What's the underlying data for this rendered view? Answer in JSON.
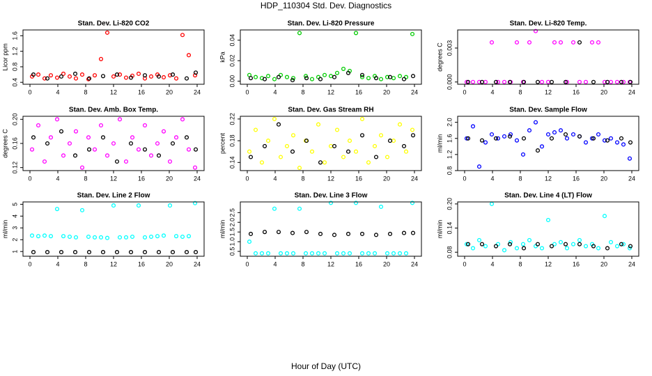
{
  "title": "HDP_110304  Std. Dev. Diagnostics",
  "x_label": "Hour of Day (UTC)",
  "chart_data": [
    {
      "type": "scatter",
      "title": "Stan. Dev. Li-820 CO2",
      "y_label": "Licor ppm",
      "xlim": [
        -1,
        25
      ],
      "xticks": [
        0,
        4,
        8,
        12,
        16,
        20,
        24
      ],
      "ylim": [
        0.35,
        1.75
      ],
      "yticks": [
        0.4,
        0.8,
        1.2,
        1.6
      ],
      "series": [
        {
          "color": "#ff0000",
          "x": [
            0.3,
            1.2,
            2.1,
            3.0,
            3.9,
            4.8,
            5.7,
            6.6,
            7.5,
            8.4,
            9.3,
            10.2,
            11.1,
            12.0,
            12.9,
            13.8,
            14.7,
            15.6,
            16.5,
            17.4,
            18.3,
            19.2,
            20.1,
            21.0,
            21.9,
            22.8,
            23.7
          ],
          "values": [
            0.55,
            0.6,
            0.5,
            0.58,
            0.52,
            0.62,
            0.55,
            0.5,
            0.6,
            0.48,
            0.58,
            1.0,
            1.68,
            0.55,
            0.6,
            0.52,
            0.57,
            0.62,
            0.5,
            0.55,
            0.6,
            0.53,
            0.58,
            0.5,
            1.62,
            1.1,
            0.58
          ]
        },
        {
          "color": "#000000",
          "x": [
            0.5,
            2.5,
            4.5,
            6.5,
            8.5,
            10.5,
            12.5,
            14.5,
            16.5,
            18.5,
            20.5,
            22.5,
            23.8
          ],
          "values": [
            0.6,
            0.5,
            0.55,
            0.62,
            0.5,
            0.56,
            0.6,
            0.52,
            0.58,
            0.55,
            0.6,
            0.5,
            0.65
          ]
        }
      ]
    },
    {
      "type": "scatter",
      "title": "Stan. Dev. Li-820 Pressure",
      "y_label": "kPa",
      "xlim": [
        -1,
        25
      ],
      "xticks": [
        0,
        4,
        8,
        12,
        16,
        20,
        24
      ],
      "ylim": [
        -0.003,
        0.05
      ],
      "yticks": [
        {
          "value": 0,
          "label": "0.00"
        },
        0.02,
        0.04
      ],
      "series": [
        {
          "color": "#00cc00",
          "x": [
            0.3,
            1.2,
            2.1,
            3.0,
            3.9,
            4.8,
            5.7,
            6.6,
            7.5,
            8.4,
            9.3,
            10.2,
            11.1,
            12.0,
            12.9,
            13.8,
            14.7,
            15.6,
            16.5,
            17.4,
            18.3,
            19.2,
            20.1,
            21.0,
            21.9,
            22.8,
            23.7
          ],
          "values": [
            0.006,
            0.004,
            0.003,
            0.005,
            0.002,
            0.006,
            0.004,
            0.003,
            0.047,
            0.005,
            0.002,
            0.004,
            0.006,
            0.005,
            0.008,
            0.012,
            0.01,
            0.047,
            0.004,
            0.003,
            0.005,
            0.002,
            0.004,
            0.003,
            0.005,
            0.004,
            0.046
          ]
        },
        {
          "color": "#000000",
          "x": [
            0.5,
            2.5,
            4.5,
            6.5,
            8.5,
            10.5,
            12.5,
            14.5,
            16.5,
            18.5,
            20.5,
            22.5,
            23.8
          ],
          "values": [
            0.003,
            0.002,
            0.004,
            0.001,
            0.003,
            0.002,
            0.004,
            0.008,
            0.006,
            0.003,
            0.004,
            0.002,
            0.005
          ]
        }
      ]
    },
    {
      "type": "scatter",
      "title": "Stan. Dev. Li-820 Temp.",
      "y_label": "degrees C",
      "xlim": [
        -1,
        25
      ],
      "xticks": [
        0,
        4,
        8,
        12,
        16,
        20,
        24
      ],
      "ylim": [
        -0.0002,
        0.0046
      ],
      "yticks": [
        {
          "value": 0,
          "label": "0.000"
        },
        0.003
      ],
      "series": [
        {
          "color": "#ff00ff",
          "x": [
            0.3,
            1.2,
            2.1,
            3.0,
            3.9,
            4.8,
            5.7,
            6.6,
            7.5,
            8.4,
            9.3,
            10.2,
            11.1,
            12.0,
            12.9,
            13.8,
            14.7,
            15.6,
            16.5,
            17.4,
            18.3,
            19.2,
            20.1,
            21.0,
            21.9,
            22.8,
            23.7
          ],
          "values": [
            0,
            0,
            0,
            0,
            0.0035,
            0,
            0,
            0,
            0.0035,
            0,
            0.0035,
            0.0045,
            0,
            0,
            0.0035,
            0.0035,
            0,
            0.0035,
            0,
            0,
            0.0035,
            0.0035,
            0,
            0,
            0,
            0,
            0
          ]
        },
        {
          "color": "#000000",
          "x": [
            0.5,
            2.5,
            4.5,
            6.5,
            8.5,
            10.5,
            12.5,
            14.5,
            16.5,
            18.5,
            20.5,
            22.5,
            23.8
          ],
          "values": [
            0,
            0,
            0,
            0,
            0,
            0,
            0,
            0,
            0.0035,
            0,
            0,
            0,
            0
          ]
        }
      ]
    },
    {
      "type": "scatter",
      "title": "Stan. Dev. Amb. Box Temp.",
      "y_label": "degrees C",
      "xlim": [
        -1,
        25
      ],
      "xticks": [
        0,
        4,
        8,
        12,
        16,
        20,
        24
      ],
      "ylim": [
        0.115,
        0.205
      ],
      "yticks": [
        0.12,
        0.16,
        {
          "value": 0.2,
          "label": "0.20"
        }
      ],
      "series": [
        {
          "color": "#ff00ff",
          "x": [
            0.3,
            1.2,
            2.1,
            3.0,
            3.9,
            4.8,
            5.7,
            6.6,
            7.5,
            8.4,
            9.3,
            10.2,
            11.1,
            12.0,
            12.9,
            13.8,
            14.7,
            15.6,
            16.5,
            17.4,
            18.3,
            19.2,
            20.1,
            21.0,
            21.9,
            22.8,
            23.7
          ],
          "values": [
            0.15,
            0.19,
            0.13,
            0.17,
            0.2,
            0.14,
            0.16,
            0.18,
            0.12,
            0.17,
            0.15,
            0.19,
            0.14,
            0.16,
            0.2,
            0.13,
            0.17,
            0.15,
            0.19,
            0.14,
            0.16,
            0.18,
            0.13,
            0.17,
            0.2,
            0.15,
            0.12
          ]
        },
        {
          "color": "#000000",
          "x": [
            0.5,
            2.5,
            4.5,
            6.5,
            8.5,
            10.5,
            12.5,
            14.5,
            16.5,
            18.5,
            20.5,
            22.5,
            23.8
          ],
          "values": [
            0.17,
            0.16,
            0.18,
            0.14,
            0.15,
            0.17,
            0.13,
            0.16,
            0.15,
            0.14,
            0.16,
            0.17,
            0.15
          ]
        }
      ]
    },
    {
      "type": "scatter",
      "title": "Stan. Dev. Gas Stream RH",
      "y_label": "percent",
      "xlim": [
        -1,
        25
      ],
      "xticks": [
        0,
        4,
        8,
        12,
        16,
        20,
        24
      ],
      "ylim": [
        0.125,
        0.225
      ],
      "yticks": [
        0.14,
        0.18,
        0.22
      ],
      "series": [
        {
          "color": "#ffff00",
          "x": [
            0.3,
            1.2,
            2.1,
            3.0,
            3.9,
            4.8,
            5.7,
            6.6,
            7.5,
            8.4,
            9.3,
            10.2,
            11.1,
            12.0,
            12.9,
            13.8,
            14.7,
            15.6,
            16.5,
            17.4,
            18.3,
            19.2,
            20.1,
            21.0,
            21.9,
            22.8,
            23.7
          ],
          "values": [
            0.16,
            0.2,
            0.14,
            0.18,
            0.22,
            0.15,
            0.17,
            0.19,
            0.13,
            0.18,
            0.16,
            0.21,
            0.14,
            0.17,
            0.2,
            0.15,
            0.18,
            0.16,
            0.22,
            0.14,
            0.17,
            0.19,
            0.15,
            0.18,
            0.21,
            0.16,
            0.2
          ]
        },
        {
          "color": "#000000",
          "x": [
            0.5,
            2.5,
            4.5,
            6.5,
            8.5,
            10.5,
            12.5,
            14.5,
            16.5,
            18.5,
            20.5,
            22.5,
            23.8
          ],
          "values": [
            0.15,
            0.17,
            0.21,
            0.16,
            0.18,
            0.14,
            0.17,
            0.16,
            0.19,
            0.15,
            0.18,
            0.17,
            0.19
          ]
        }
      ]
    },
    {
      "type": "scatter",
      "title": "Stan. Dev. Sample Flow",
      "y_label": "ml/min",
      "xlim": [
        -1,
        25
      ],
      "xticks": [
        0,
        4,
        8,
        12,
        16,
        20,
        24
      ],
      "ylim": [
        0.8,
        2.15
      ],
      "yticks": [
        0.8,
        1.2,
        1.6,
        {
          "value": 2,
          "label": "2.0"
        }
      ],
      "series": [
        {
          "color": "#0000ff",
          "x": [
            0.3,
            1.2,
            2.1,
            3.0,
            3.9,
            4.8,
            5.7,
            6.6,
            7.5,
            8.4,
            9.3,
            10.2,
            11.1,
            12.0,
            12.9,
            13.8,
            14.7,
            15.6,
            16.5,
            17.4,
            18.3,
            19.2,
            20.1,
            21.0,
            21.9,
            22.8,
            23.7
          ],
          "values": [
            1.6,
            1.9,
            0.9,
            1.5,
            1.7,
            1.6,
            1.65,
            1.7,
            1.55,
            1.2,
            1.8,
            2.0,
            1.4,
            1.7,
            1.75,
            1.8,
            1.6,
            1.7,
            1.65,
            1.5,
            1.6,
            1.7,
            1.55,
            1.6,
            1.5,
            1.45,
            1.1
          ]
        },
        {
          "color": "#000000",
          "x": [
            0.5,
            2.5,
            4.5,
            6.5,
            8.5,
            10.5,
            12.5,
            14.5,
            16.5,
            18.5,
            20.5,
            22.5,
            23.8
          ],
          "values": [
            1.6,
            1.55,
            1.6,
            1.65,
            1.6,
            1.3,
            1.6,
            1.7,
            1.65,
            1.6,
            1.55,
            1.6,
            1.5
          ]
        }
      ]
    },
    {
      "type": "scatter",
      "title": "Stan. Dev. Line 2 Flow",
      "y_label": "ml/min",
      "xlim": [
        -1,
        25
      ],
      "xticks": [
        0,
        4,
        8,
        12,
        16,
        20,
        24
      ],
      "ylim": [
        0.6,
        5.2
      ],
      "yticks": [
        1,
        2,
        3,
        4,
        5
      ],
      "series": [
        {
          "color": "#00ffff",
          "x": [
            0.3,
            1.2,
            2.1,
            3.0,
            3.9,
            4.8,
            5.7,
            6.6,
            7.5,
            8.4,
            9.3,
            10.2,
            11.1,
            12.0,
            12.9,
            13.8,
            14.7,
            15.6,
            16.5,
            17.4,
            18.3,
            19.2,
            20.1,
            21.0,
            21.9,
            22.8,
            23.7
          ],
          "values": [
            2.35,
            2.3,
            2.35,
            2.3,
            4.6,
            2.3,
            2.25,
            2.2,
            4.5,
            2.25,
            2.2,
            2.2,
            2.15,
            4.9,
            2.2,
            2.2,
            2.25,
            4.9,
            2.2,
            2.25,
            2.3,
            2.35,
            4.9,
            2.3,
            2.25,
            2.3,
            5.1
          ]
        },
        {
          "color": "#000000",
          "x": [
            0.5,
            2.5,
            4.5,
            6.5,
            8.5,
            10.5,
            12.5,
            14.5,
            16.5,
            18.5,
            20.5,
            22.5,
            23.8
          ],
          "values": [
            0.95,
            0.95,
            0.95,
            0.95,
            0.95,
            0.95,
            0.95,
            0.95,
            0.95,
            0.95,
            0.95,
            0.95,
            0.95
          ]
        }
      ]
    },
    {
      "type": "scatter",
      "title": "Stan. Dev. Line 3 Flow",
      "y_label": "ml/min",
      "xlim": [
        -1,
        25
      ],
      "xticks": [
        0,
        4,
        8,
        12,
        16,
        20,
        24
      ],
      "ylim": [
        0.25,
        3.05
      ],
      "yticks": [
        0.5,
        {
          "value": 1,
          "label": "1.0"
        },
        1.5,
        {
          "value": 2,
          "label": "2.0"
        },
        2.5
      ],
      "series": [
        {
          "color": "#00ffff",
          "x": [
            0.3,
            1.2,
            2.1,
            3.0,
            3.9,
            4.8,
            5.7,
            6.6,
            7.5,
            8.4,
            9.3,
            10.2,
            11.1,
            12.0,
            12.9,
            13.8,
            14.7,
            15.6,
            16.5,
            17.4,
            18.3,
            19.2,
            20.1,
            21.0,
            21.9,
            22.8,
            23.7
          ],
          "values": [
            1.0,
            0.4,
            0.4,
            0.4,
            2.7,
            0.4,
            0.4,
            0.4,
            2.7,
            0.4,
            0.4,
            0.4,
            0.4,
            3.0,
            0.4,
            0.4,
            0.4,
            3.0,
            0.4,
            0.4,
            0.4,
            2.8,
            0.4,
            0.4,
            0.4,
            0.4,
            3.0
          ]
        },
        {
          "color": "#000000",
          "x": [
            0.5,
            2.5,
            4.5,
            6.5,
            8.5,
            10.5,
            12.5,
            14.5,
            16.5,
            18.5,
            20.5,
            22.5,
            23.8
          ],
          "values": [
            1.4,
            1.5,
            1.5,
            1.45,
            1.5,
            1.4,
            1.35,
            1.4,
            1.4,
            1.35,
            1.4,
            1.45,
            1.45
          ]
        }
      ]
    },
    {
      "type": "scatter",
      "title": "Stan. Dev. Line 4 (LT) Flow",
      "y_label": "ml/min",
      "xlim": [
        -1,
        25
      ],
      "xticks": [
        0,
        4,
        8,
        12,
        16,
        20,
        24
      ],
      "ylim": [
        0.07,
        0.205
      ],
      "yticks": [
        0.08,
        0.14,
        {
          "value": 0.2,
          "label": "0.20"
        }
      ],
      "series": [
        {
          "color": "#00ffff",
          "x": [
            0.3,
            1.2,
            2.1,
            3.0,
            3.9,
            4.8,
            5.7,
            6.6,
            7.5,
            8.4,
            9.3,
            10.2,
            11.1,
            12.0,
            12.9,
            13.8,
            14.7,
            15.6,
            16.5,
            17.4,
            18.3,
            19.2,
            20.1,
            21.0,
            21.9,
            22.8,
            23.7
          ],
          "values": [
            0.1,
            0.09,
            0.11,
            0.095,
            0.2,
            0.1,
            0.085,
            0.105,
            0.09,
            0.1,
            0.11,
            0.095,
            0.09,
            0.16,
            0.1,
            0.105,
            0.09,
            0.1,
            0.11,
            0.095,
            0.1,
            0.09,
            0.17,
            0.105,
            0.095,
            0.1,
            0.09
          ]
        },
        {
          "color": "#000000",
          "x": [
            0.5,
            2.5,
            4.5,
            6.5,
            8.5,
            10.5,
            12.5,
            14.5,
            16.5,
            18.5,
            20.5,
            22.5,
            23.8
          ],
          "values": [
            0.1,
            0.1,
            0.095,
            0.1,
            0.09,
            0.1,
            0.095,
            0.1,
            0.1,
            0.095,
            0.09,
            0.1,
            0.095
          ]
        }
      ]
    }
  ]
}
